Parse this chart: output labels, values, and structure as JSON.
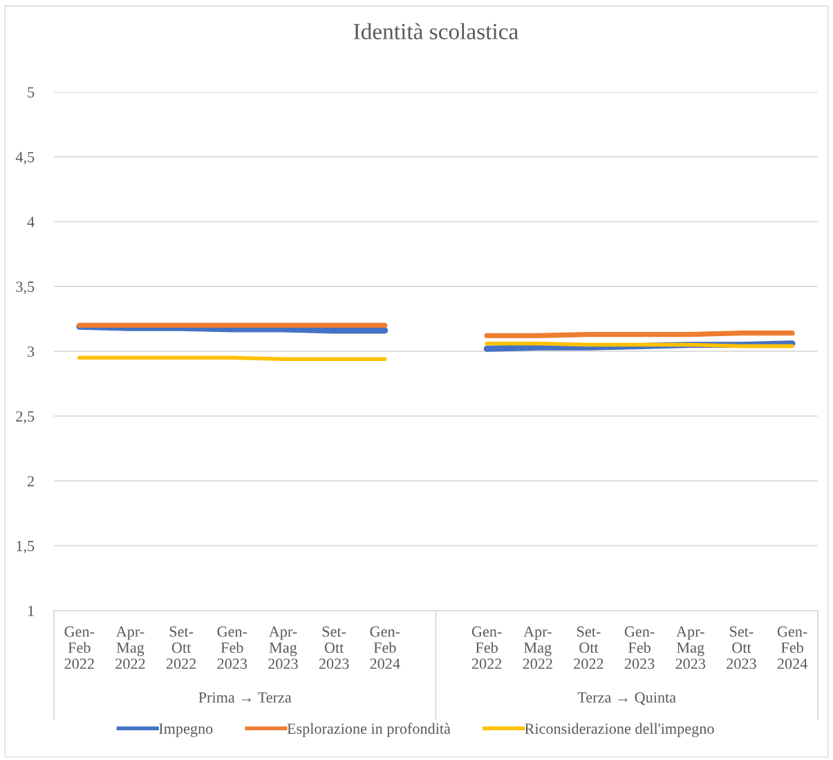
{
  "chart_data": {
    "type": "line",
    "title": "Identità scolastica",
    "categories": [
      "Gen-\nFeb\n2022",
      "Apr-\nMag\n2022",
      "Set-\nOtt\n2022",
      "Gen-\nFeb\n2023",
      "Apr-\nMag\n2023",
      "Set-\nOtt\n2023",
      "Gen-\nFeb\n2024",
      null,
      "Gen-\nFeb\n2022",
      "Apr-\nMag\n2022",
      "Set-\nOtt\n2022",
      "Gen-\nFeb\n2023",
      "Apr-\nMag\n2023",
      "Set-\nOtt\n2023",
      "Gen-\nFeb\n2024"
    ],
    "series": [
      {
        "name": "Impegno",
        "color": "#4472c4",
        "values": [
          3.19,
          3.18,
          3.18,
          3.17,
          3.17,
          3.16,
          3.16,
          null,
          3.02,
          3.03,
          3.03,
          3.04,
          3.05,
          3.05,
          3.06
        ]
      },
      {
        "name": "Esplorazione in profondità",
        "color": "#ed7d31",
        "values": [
          3.2,
          3.2,
          3.2,
          3.2,
          3.2,
          3.2,
          3.2,
          null,
          3.12,
          3.12,
          3.13,
          3.13,
          3.13,
          3.14,
          3.14
        ]
      },
      {
        "name": "Riconsiderazione dell'impegno",
        "color": "#ffc000",
        "values": [
          2.95,
          2.95,
          2.95,
          2.95,
          2.94,
          2.94,
          2.94,
          null,
          3.06,
          3.06,
          3.05,
          3.05,
          3.05,
          3.04,
          3.04
        ]
      }
    ],
    "ylim": [
      1,
      5
    ],
    "yticks": [
      1,
      {
        "value": 1.5,
        "label": "1,5"
      },
      2,
      {
        "value": 2.5,
        "label": "2,5"
      },
      3,
      {
        "value": 3.5,
        "label": "3,5"
      },
      4,
      {
        "value": 4.5,
        "label": "4,5"
      },
      5
    ],
    "grid": "y",
    "legend": "bottom",
    "marker": "none",
    "line_style": "solid",
    "annotations": [
      "Prima → Terza",
      "Terza → Quinta"
    ]
  }
}
